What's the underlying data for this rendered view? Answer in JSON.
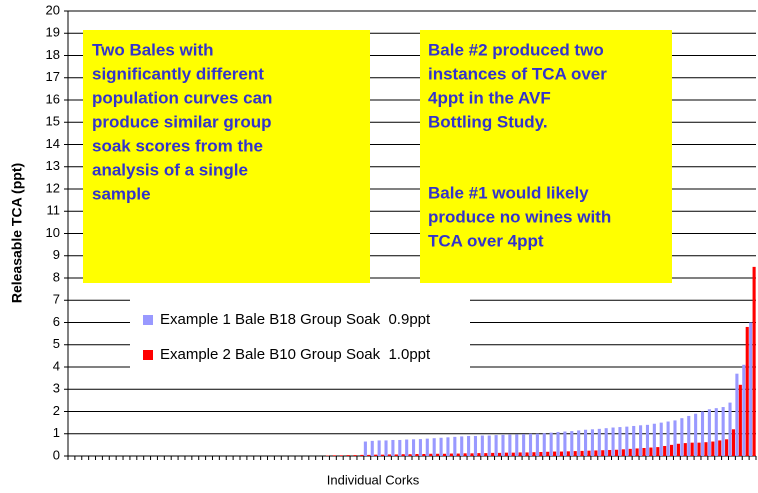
{
  "chart_data": {
    "type": "bar",
    "y_label": "Releasable TCA (ppt)",
    "x_label": "Individual Corks",
    "categories": [
      null,
      null,
      null,
      null,
      null,
      null,
      null,
      null,
      null,
      null,
      null,
      null,
      null,
      null,
      null,
      null,
      null,
      null,
      null,
      null,
      null,
      null,
      null,
      null,
      null,
      null,
      null,
      null,
      null,
      null,
      null,
      null,
      null,
      null,
      null,
      null,
      null,
      null,
      null,
      null,
      null,
      null,
      null,
      null,
      null,
      null,
      null,
      null,
      null,
      null,
      null,
      null,
      null,
      null,
      null,
      null,
      null,
      null,
      null,
      null,
      null,
      null,
      null,
      null,
      null,
      null,
      null,
      null,
      null,
      null,
      null,
      null,
      null,
      null,
      null,
      null,
      null,
      null,
      null,
      null,
      null,
      null,
      null,
      null,
      null,
      null,
      null,
      null,
      null,
      null,
      null,
      null,
      null,
      null,
      null,
      null,
      null,
      null,
      null,
      null
    ],
    "series": [
      {
        "name": "Example 1 Bale B18 Group Soak  0.9ppt",
        "color": "#9999ff",
        "values": [
          0,
          0,
          0,
          0,
          0,
          0,
          0,
          0,
          0,
          0,
          0,
          0,
          0,
          0,
          0,
          0,
          0,
          0,
          0,
          0,
          0,
          0,
          0,
          0,
          0,
          0,
          0,
          0,
          0,
          0,
          0,
          0,
          0,
          0,
          0,
          0,
          0,
          0,
          0,
          0,
          0,
          0,
          0,
          0.65,
          0.68,
          0.7,
          0.7,
          0.72,
          0.72,
          0.74,
          0.75,
          0.76,
          0.78,
          0.8,
          0.82,
          0.84,
          0.86,
          0.88,
          0.9,
          0.9,
          0.92,
          0.92,
          0.94,
          0.95,
          0.96,
          0.97,
          0.98,
          1.0,
          1.0,
          1.02,
          1.05,
          1.08,
          1.1,
          1.12,
          1.15,
          1.18,
          1.2,
          1.22,
          1.25,
          1.28,
          1.3,
          1.32,
          1.35,
          1.38,
          1.4,
          1.45,
          1.5,
          1.55,
          1.6,
          1.7,
          1.8,
          1.9,
          2.0,
          2.1,
          2.15,
          2.2,
          2.4,
          3.7,
          4.1,
          6.0
        ]
      },
      {
        "name": "Example 2 Bale B10 Group Soak  1.0ppt",
        "color": "#ff0000",
        "values": [
          0,
          0,
          0,
          0,
          0,
          0,
          0,
          0,
          0,
          0,
          0,
          0,
          0,
          0,
          0,
          0,
          0,
          0,
          0,
          0,
          0,
          0,
          0,
          0,
          0,
          0,
          0,
          0,
          0,
          0,
          0,
          0,
          0,
          0,
          0,
          0,
          0,
          0.02,
          0.03,
          0.03,
          0.04,
          0.04,
          0.05,
          0.05,
          0.06,
          0.06,
          0.07,
          0.07,
          0.08,
          0.08,
          0.09,
          0.09,
          0.1,
          0.1,
          0.1,
          0.11,
          0.11,
          0.12,
          0.12,
          0.13,
          0.13,
          0.14,
          0.14,
          0.15,
          0.15,
          0.16,
          0.16,
          0.17,
          0.18,
          0.19,
          0.2,
          0.2,
          0.21,
          0.22,
          0.23,
          0.24,
          0.25,
          0.26,
          0.27,
          0.28,
          0.3,
          0.32,
          0.34,
          0.36,
          0.38,
          0.4,
          0.45,
          0.5,
          0.55,
          0.58,
          0.6,
          0.6,
          0.62,
          0.65,
          0.7,
          0.75,
          1.2,
          3.2,
          5.8,
          8.5
        ]
      }
    ],
    "ylim": [
      0,
      20
    ],
    "yticks": [
      0,
      1,
      2,
      3,
      4,
      5,
      6,
      7,
      8,
      9,
      10,
      11,
      12,
      13,
      14,
      15,
      16,
      17,
      18,
      19,
      20
    ],
    "grid": true,
    "annotations": [
      [
        "Two Bales with",
        "significantly different",
        "population curves can",
        "produce similar group",
        "soak scores from the",
        "analysis of a single",
        "sample"
      ],
      [
        "Bale #2 produced two",
        "instances of TCA over",
        "4ppt in the AVF",
        "Bottling Study."
      ],
      [
        "Bale #1 would likely",
        "produce no wines with",
        "TCA over 4ppt"
      ]
    ]
  }
}
